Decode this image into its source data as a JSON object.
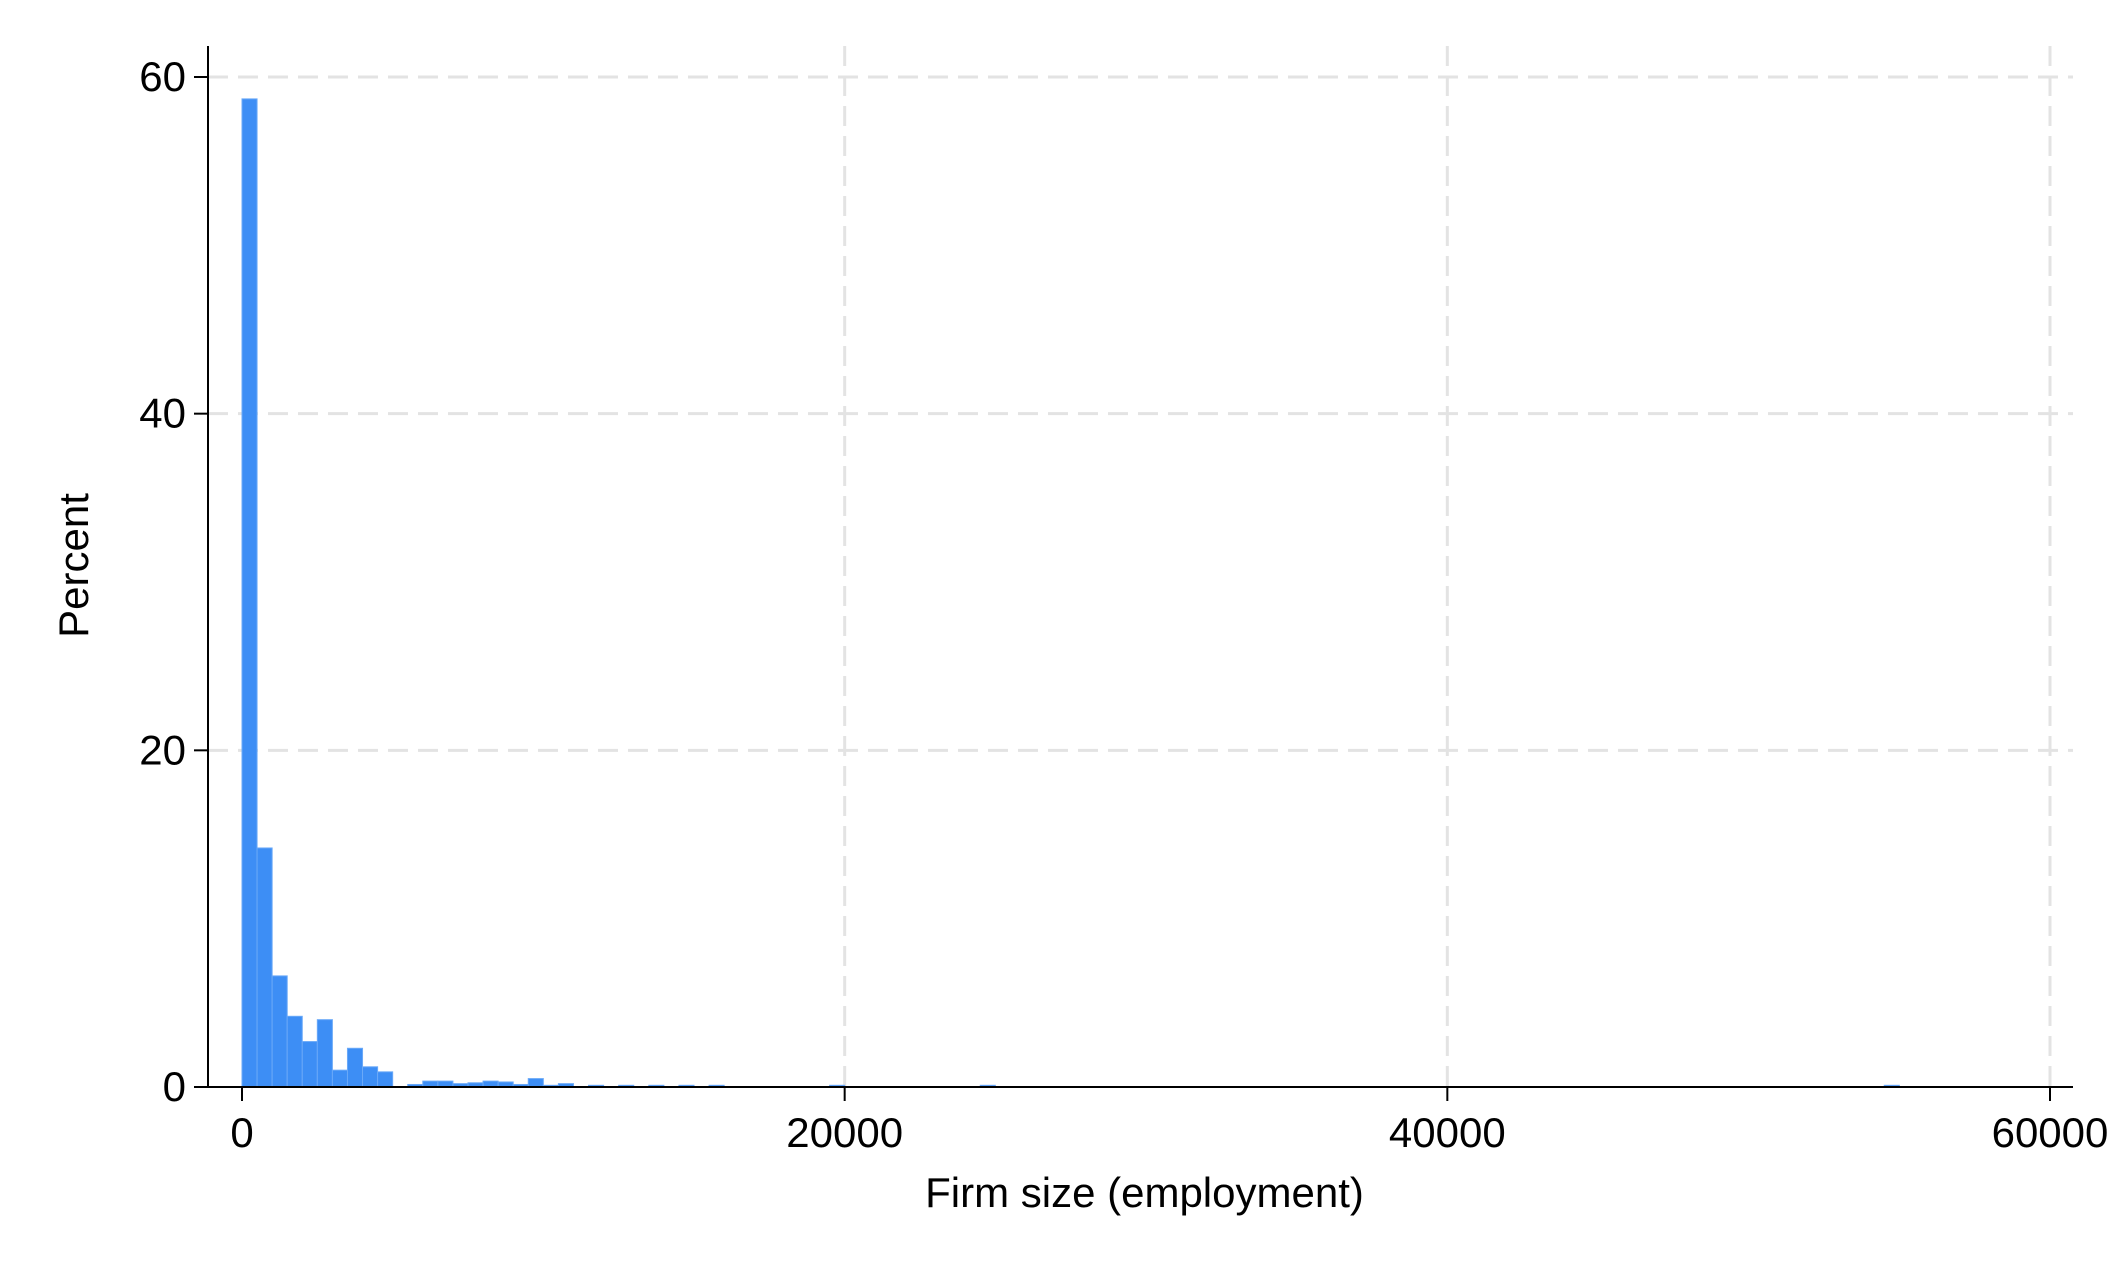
{
  "chart_data": {
    "type": "bar",
    "subtype": "histogram",
    "title": "",
    "xlabel": "Firm size (employment)",
    "ylabel": "Percent",
    "xlim": [
      0,
      60000
    ],
    "ylim": [
      0,
      60
    ],
    "xticks": [
      0,
      20000,
      40000,
      60000
    ],
    "xtick_labels": [
      "0",
      "20000",
      "40000",
      "60000"
    ],
    "yticks": [
      0,
      20,
      40,
      60
    ],
    "ytick_labels": [
      "0",
      "20",
      "40",
      "60"
    ],
    "grid": true,
    "legend": "none",
    "bar_color": "#3d8ef5",
    "bin_width": 500,
    "bins": [
      {
        "x0": 0,
        "x1": 500,
        "value": 58.7
      },
      {
        "x0": 500,
        "x1": 1000,
        "value": 14.2
      },
      {
        "x0": 1000,
        "x1": 1500,
        "value": 6.6
      },
      {
        "x0": 1500,
        "x1": 2000,
        "value": 4.2
      },
      {
        "x0": 2000,
        "x1": 2500,
        "value": 2.7
      },
      {
        "x0": 2500,
        "x1": 3000,
        "value": 4.0
      },
      {
        "x0": 3000,
        "x1": 3500,
        "value": 1.0
      },
      {
        "x0": 3500,
        "x1": 4000,
        "value": 2.3
      },
      {
        "x0": 4000,
        "x1": 4500,
        "value": 1.2
      },
      {
        "x0": 4500,
        "x1": 5000,
        "value": 0.9
      },
      {
        "x0": 5500,
        "x1": 6000,
        "value": 0.15
      },
      {
        "x0": 6000,
        "x1": 6500,
        "value": 0.35
      },
      {
        "x0": 6500,
        "x1": 7000,
        "value": 0.35
      },
      {
        "x0": 7000,
        "x1": 7500,
        "value": 0.2
      },
      {
        "x0": 7500,
        "x1": 8000,
        "value": 0.25
      },
      {
        "x0": 8000,
        "x1": 8500,
        "value": 0.35
      },
      {
        "x0": 8500,
        "x1": 9000,
        "value": 0.3
      },
      {
        "x0": 9000,
        "x1": 9500,
        "value": 0.15
      },
      {
        "x0": 9500,
        "x1": 10000,
        "value": 0.5
      },
      {
        "x0": 10000,
        "x1": 10500,
        "value": 0.1
      },
      {
        "x0": 10500,
        "x1": 11000,
        "value": 0.2
      },
      {
        "x0": 11500,
        "x1": 12000,
        "value": 0.1
      },
      {
        "x0": 12500,
        "x1": 13000,
        "value": 0.1
      },
      {
        "x0": 13500,
        "x1": 14000,
        "value": 0.1
      },
      {
        "x0": 14500,
        "x1": 15000,
        "value": 0.1
      },
      {
        "x0": 15500,
        "x1": 16000,
        "value": 0.1
      },
      {
        "x0": 19500,
        "x1": 20000,
        "value": 0.1
      },
      {
        "x0": 24500,
        "x1": 25000,
        "value": 0.1
      },
      {
        "x0": 54500,
        "x1": 55000,
        "value": 0.1
      }
    ]
  }
}
